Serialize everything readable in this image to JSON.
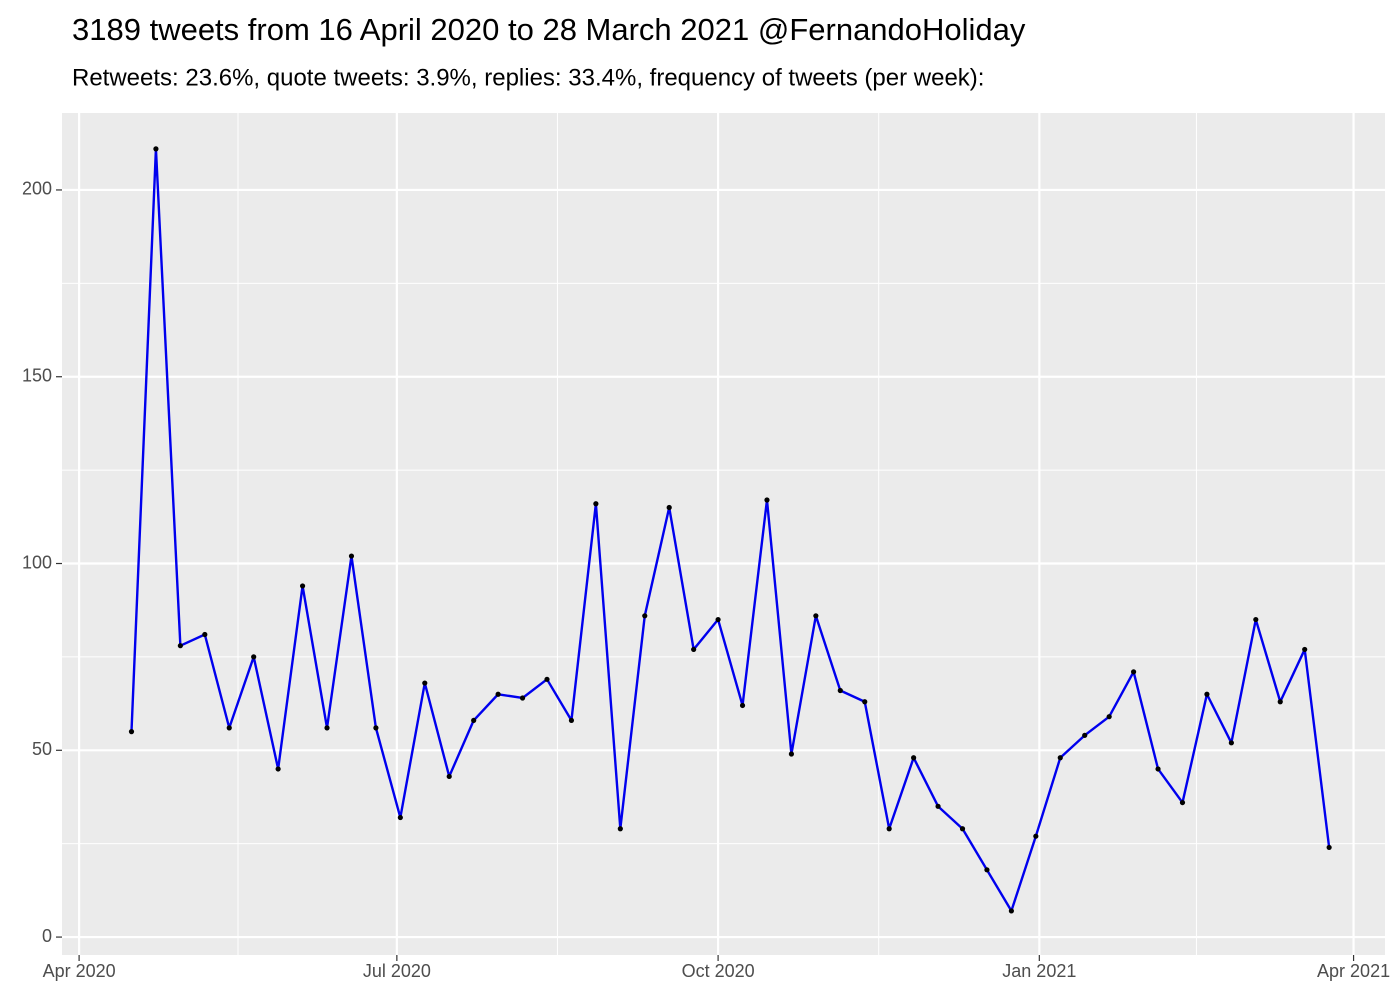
{
  "chart_data": {
    "type": "line",
    "title": "3189 tweets from 16 April 2020 to 28 March 2021 @FernandoHoliday",
    "subtitle": "Retweets: 23.6%, quote tweets: 3.9%, replies: 33.4%, frequency of tweets (per week):",
    "x": [
      15,
      22,
      29,
      36,
      43,
      50,
      57,
      64,
      71,
      78,
      85,
      92,
      99,
      106,
      113,
      120,
      127,
      134,
      141,
      148,
      155,
      162,
      169,
      176,
      183,
      190,
      197,
      204,
      211,
      218,
      225,
      232,
      239,
      246,
      253,
      260,
      267,
      274,
      281,
      288,
      295,
      302,
      309,
      316,
      323,
      330,
      337,
      344,
      351,
      358
    ],
    "values": [
      55,
      211,
      78,
      81,
      56,
      75,
      45,
      94,
      56,
      102,
      56,
      32,
      68,
      43,
      58,
      65,
      64,
      69,
      58,
      116,
      29,
      86,
      115,
      77,
      85,
      62,
      117,
      49,
      86,
      66,
      63,
      29,
      48,
      35,
      29,
      18,
      7,
      27,
      48,
      54,
      59,
      71,
      45,
      36,
      65,
      52,
      85,
      63,
      77,
      24
    ],
    "color": "#0000ee",
    "point_color": "#000000",
    "xlim": [
      -4.9,
      374
    ],
    "xticks": [
      {
        "value": 0,
        "label": "Apr 2020"
      },
      {
        "value": 91,
        "label": "Jul 2020"
      },
      {
        "value": 183,
        "label": "Oct 2020"
      },
      {
        "value": 275,
        "label": "Jan 2021"
      },
      {
        "value": 365,
        "label": "Apr 2021"
      }
    ],
    "ylim": [
      -4.8,
      220.6
    ],
    "yticks": [
      0,
      50,
      100,
      150,
      200
    ],
    "grid": true
  }
}
